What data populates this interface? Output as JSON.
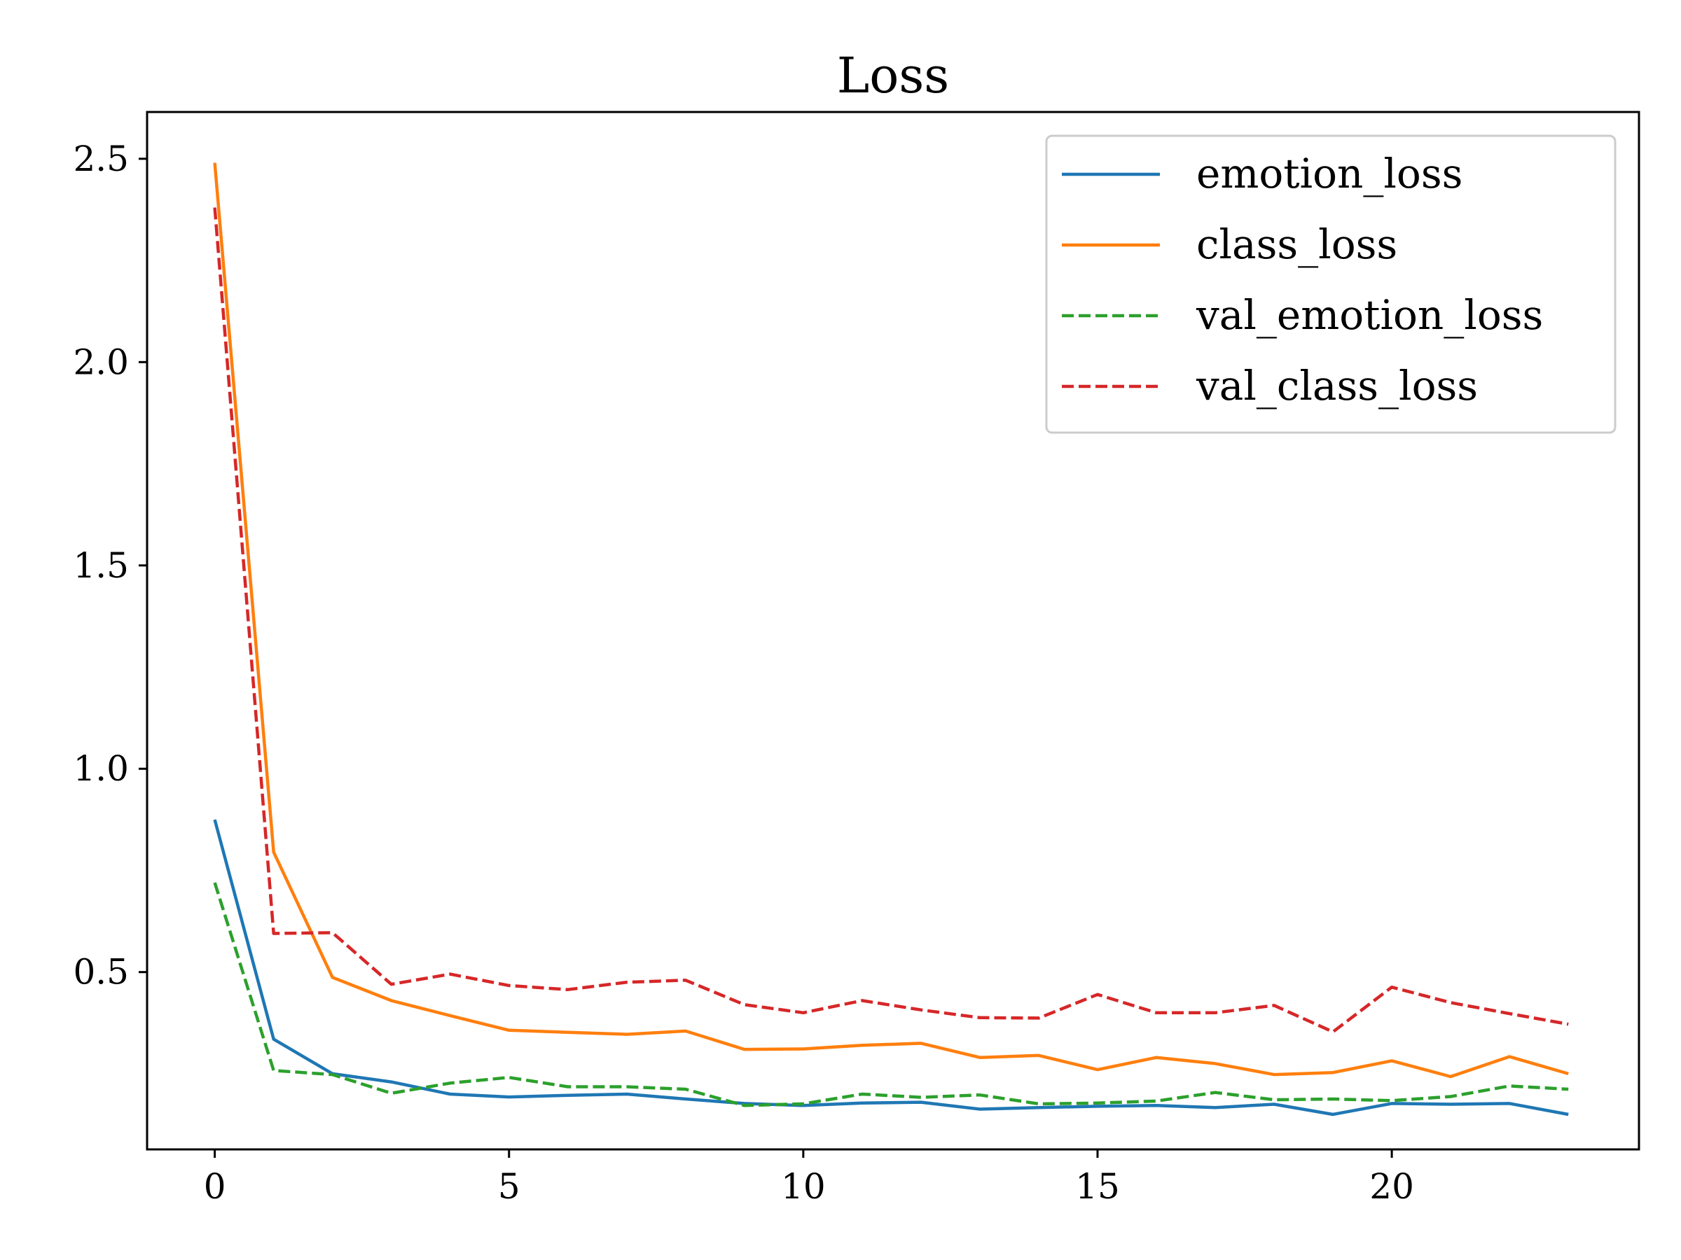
{
  "chart_data": {
    "type": "line",
    "title": "Loss",
    "xlabel": "",
    "ylabel": "",
    "xlim": [
      -1.15,
      24.2
    ],
    "ylim": [
      0.064,
      2.615
    ],
    "x_ticks": [
      0,
      5,
      10,
      15,
      20
    ],
    "y_ticks": [
      0.5,
      1.0,
      1.5,
      2.0,
      2.5
    ],
    "x_tick_labels": [
      "0",
      "5",
      "10",
      "15",
      "20"
    ],
    "y_tick_labels": [
      "0.5",
      "1.0",
      "1.5",
      "2.0",
      "2.5"
    ],
    "grid": false,
    "legend_position": "top-right",
    "x": [
      0,
      1,
      2,
      3,
      4,
      5,
      6,
      7,
      8,
      9,
      10,
      11,
      12,
      13,
      14,
      15,
      16,
      17,
      18,
      19,
      20,
      21,
      22,
      23
    ],
    "series": [
      {
        "name": "emotion_loss",
        "color": "#1f77b4",
        "style": "solid",
        "values": [
          0.875,
          0.335,
          0.25,
          0.23,
          0.2,
          0.193,
          0.197,
          0.2,
          0.188,
          0.177,
          0.172,
          0.178,
          0.18,
          0.163,
          0.167,
          0.17,
          0.172,
          0.167,
          0.175,
          0.15,
          0.177,
          0.175,
          0.177,
          0.15
        ]
      },
      {
        "name": "class_loss",
        "color": "#ff7f0e",
        "style": "solid",
        "values": [
          2.49,
          0.795,
          0.487,
          0.43,
          0.393,
          0.357,
          0.352,
          0.347,
          0.355,
          0.31,
          0.311,
          0.32,
          0.325,
          0.29,
          0.295,
          0.26,
          0.29,
          0.275,
          0.248,
          0.253,
          0.282,
          0.243,
          0.292,
          0.25
        ]
      },
      {
        "name": "val_emotion_loss",
        "color": "#2ca02c",
        "style": "dashed",
        "values": [
          0.72,
          0.258,
          0.248,
          0.202,
          0.227,
          0.241,
          0.218,
          0.218,
          0.212,
          0.172,
          0.176,
          0.2,
          0.192,
          0.198,
          0.176,
          0.178,
          0.183,
          0.204,
          0.186,
          0.188,
          0.184,
          0.194,
          0.22,
          0.212
        ]
      },
      {
        "name": "val_class_loss",
        "color": "#d62728",
        "style": "dashed",
        "values": [
          2.38,
          0.595,
          0.597,
          0.47,
          0.495,
          0.467,
          0.457,
          0.475,
          0.48,
          0.42,
          0.4,
          0.43,
          0.407,
          0.388,
          0.387,
          0.445,
          0.4,
          0.4,
          0.418,
          0.353,
          0.463,
          0.425,
          0.398,
          0.372
        ]
      }
    ]
  }
}
